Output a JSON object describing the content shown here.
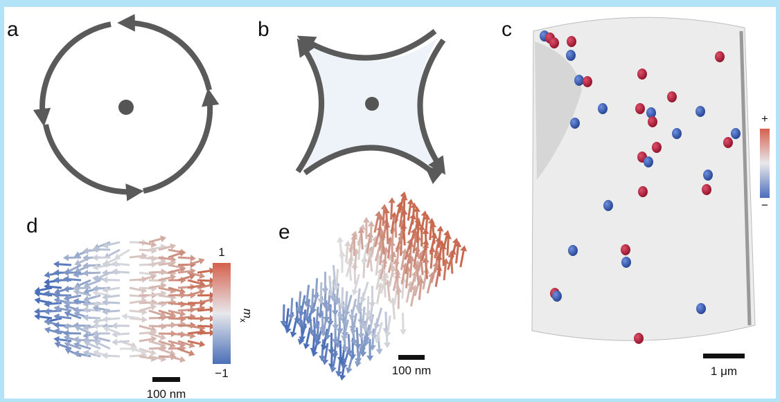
{
  "panels": {
    "a": {
      "label": "a"
    },
    "b": {
      "label": "b"
    },
    "c": {
      "label": "c",
      "colorbar_max": "+",
      "colorbar_min": "−",
      "scale_bar": "1 μm"
    },
    "d": {
      "label": "d",
      "colorbar_max": "1",
      "colorbar_min": "−1",
      "colorbar_symbol": "m",
      "colorbar_subscript": "x",
      "scale_bar": "100 nm"
    },
    "e": {
      "label": "e",
      "scale_bar": "100 nm"
    }
  }
}
